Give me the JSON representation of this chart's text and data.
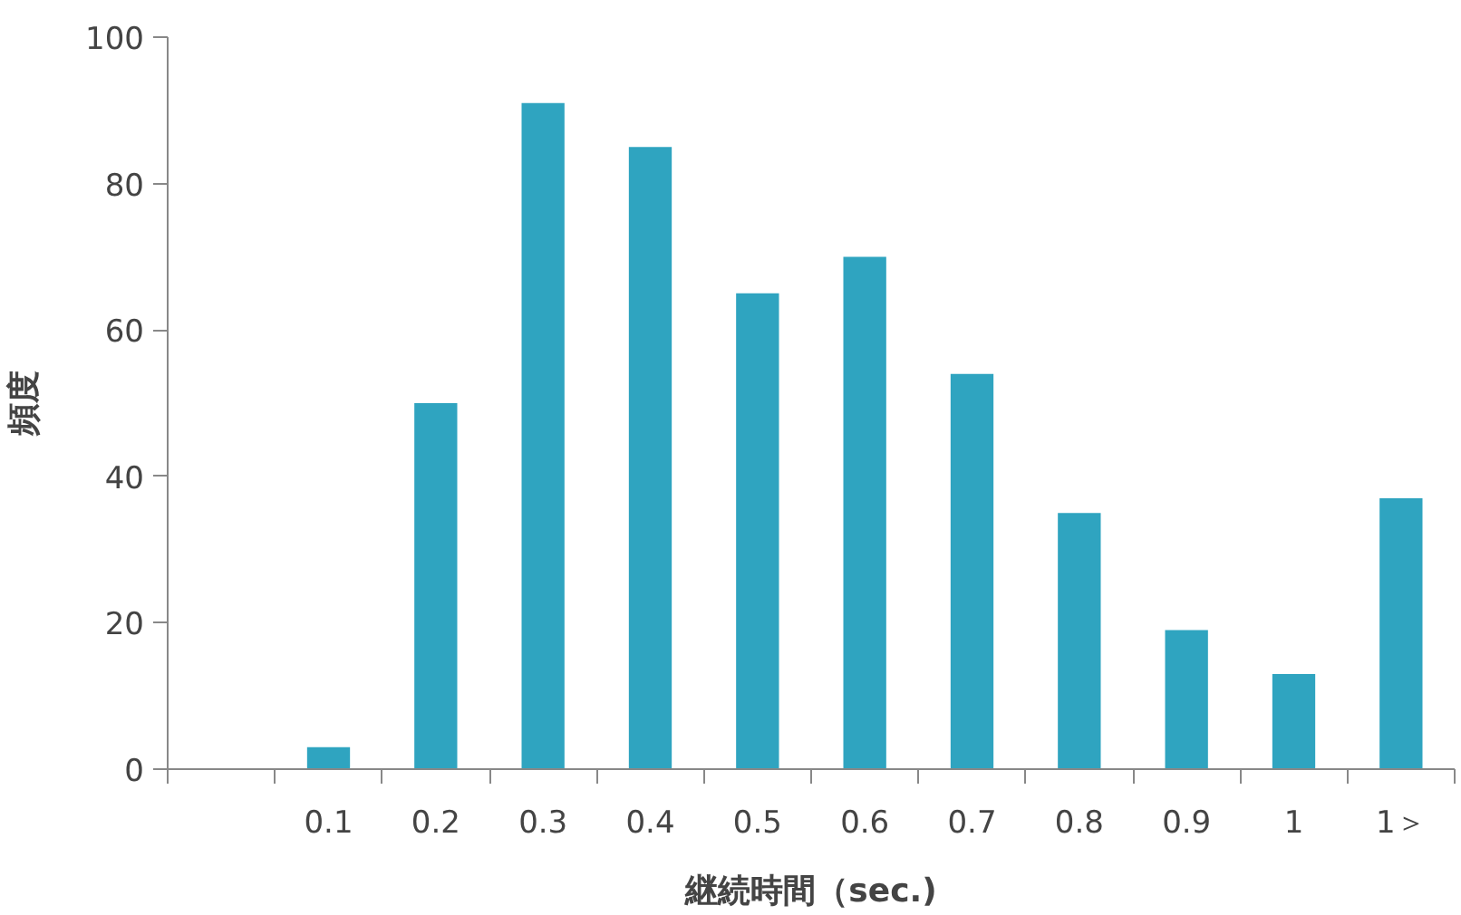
{
  "chart_data": {
    "type": "bar",
    "xlabel": "継続時間（sec.)",
    "ylabel": "頻度",
    "categories": [
      null,
      "0.1",
      "0.2",
      "0.3",
      "0.4",
      "0.5",
      "0.6",
      "0.7",
      "0.8",
      "0.9",
      "1",
      "1＞"
    ],
    "values": [
      null,
      3,
      50,
      91,
      85,
      65,
      70,
      54,
      35,
      19,
      13,
      37
    ],
    "color": "#2fa4c0",
    "ylim": [
      0,
      100
    ],
    "yticks": [
      0,
      20,
      40,
      60,
      80,
      100
    ],
    "grid": false
  }
}
